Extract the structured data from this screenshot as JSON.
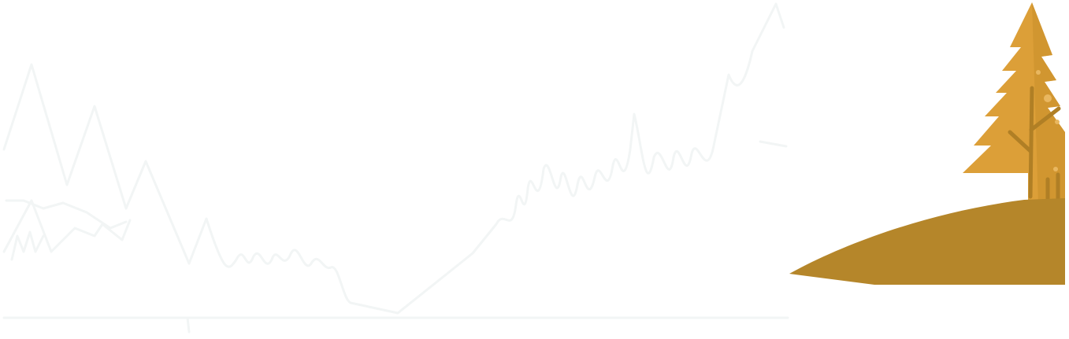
{
  "scene": {
    "colors": {
      "background": "#ffffff",
      "line_art": "#f2f5f5",
      "hill": "#b5862a",
      "tree_foliage": "#dc9f38",
      "tree_foliage_shade": "#c98e2a",
      "tree_trunk": "#b07f25",
      "foliage_dots": "#e9b760"
    },
    "elements": {
      "line_art": "faint-mountain-line-icon",
      "hill": "hill-icon",
      "tree": "pine-tree-icon"
    }
  }
}
